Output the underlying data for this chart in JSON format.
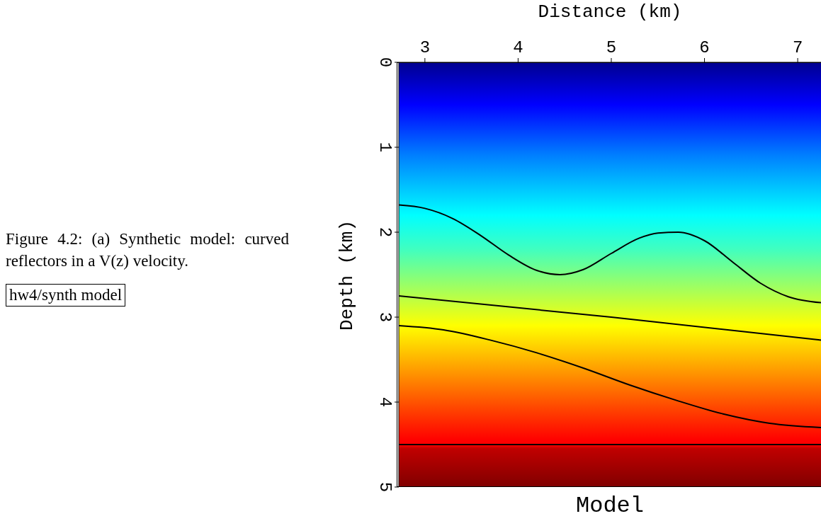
{
  "chart_data": {
    "type": "line",
    "title": "Model",
    "xlabel": "Distance (km)",
    "ylabel": "Depth (km)",
    "annotations": [
      "Figure 4.2: (a) Synthetic model: curved reflectors in a V(z) velocity.",
      "hw4/synth model"
    ],
    "xlim": [
      2.72,
      7.25
    ],
    "ylim": [
      5,
      0
    ],
    "xticks": [
      3,
      4,
      5,
      6,
      7
    ],
    "yticks": [
      0,
      1,
      2,
      3,
      4,
      5
    ],
    "marker": "none",
    "line_style": "solid",
    "series": [
      {
        "color": "#000000",
        "x": [
          2.72,
          3.0,
          3.3,
          3.6,
          3.9,
          4.2,
          4.45,
          4.7,
          5.0,
          5.3,
          5.5,
          5.72,
          6.0,
          6.3,
          6.6,
          6.9,
          7.25
        ],
        "values": [
          1.68,
          1.72,
          1.84,
          2.04,
          2.27,
          2.45,
          2.5,
          2.44,
          2.25,
          2.07,
          2.01,
          2.0,
          2.1,
          2.35,
          2.6,
          2.76,
          2.83
        ]
      },
      {
        "color": "#000000",
        "x": [
          2.72,
          5.0,
          7.25
        ],
        "values": [
          2.75,
          3.0,
          3.27
        ]
      },
      {
        "color": "#000000",
        "x": [
          2.72,
          3.2,
          3.7,
          4.2,
          4.7,
          5.2,
          5.7,
          6.2,
          6.7,
          7.25
        ],
        "values": [
          3.1,
          3.15,
          3.27,
          3.42,
          3.6,
          3.8,
          3.98,
          4.14,
          4.25,
          4.3
        ]
      },
      {
        "color": "#000000",
        "x": [
          2.72,
          7.25
        ],
        "values": [
          4.5,
          4.5
        ]
      }
    ]
  }
}
